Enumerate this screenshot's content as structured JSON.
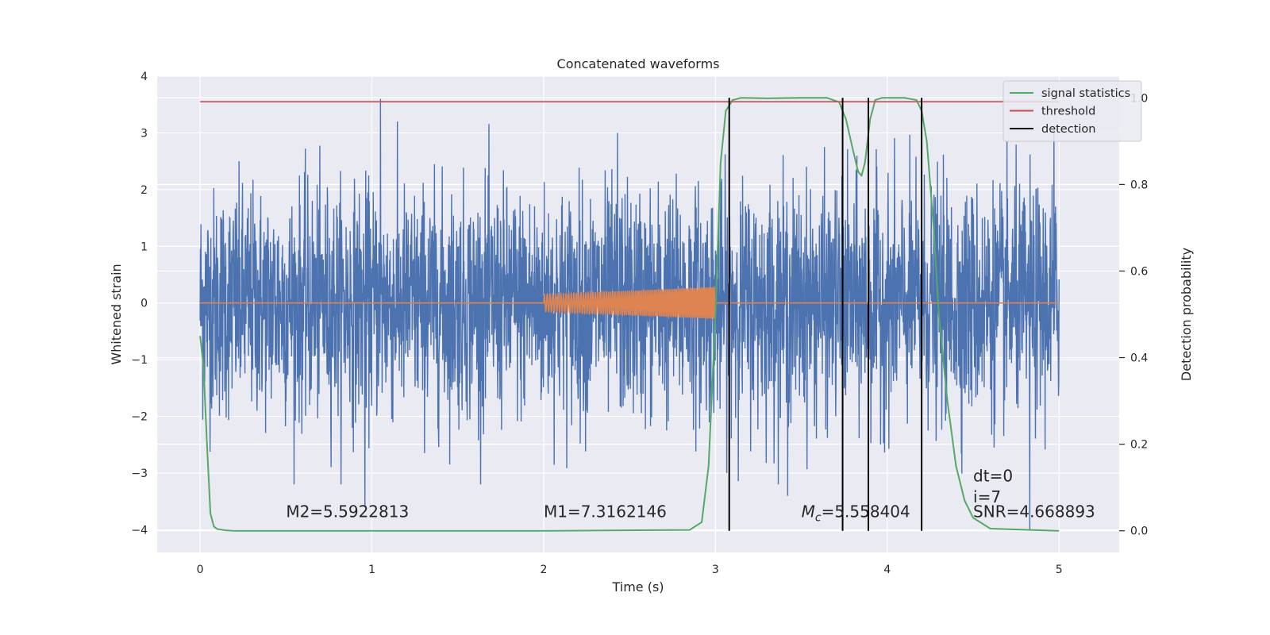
{
  "chart_data": {
    "type": "line",
    "title": "Concatenated waveforms",
    "xlabel": "Time (s)",
    "ylabel": "Whitened strain",
    "ylabel_right": "Detection probability",
    "xlim": [
      -0.25,
      5.35
    ],
    "ylim": [
      -4.4,
      4.0
    ],
    "ylim_right": [
      -0.05,
      1.05
    ],
    "x_ticks": [
      0,
      1,
      2,
      3,
      4,
      5
    ],
    "y_ticks": [
      -4,
      -3,
      -2,
      -1,
      0,
      1,
      2,
      3,
      4
    ],
    "y_ticks_right": [
      0.0,
      0.2,
      0.4,
      0.6,
      0.8,
      1.0
    ],
    "y_tick_labels_right": [
      "0.0",
      "0.2",
      "0.4",
      "0.6",
      "0.8",
      "1.0"
    ],
    "grid": true,
    "legend_position": "top-right",
    "series": [
      {
        "name": "",
        "axis": "left",
        "color": "#4c72b0",
        "style": "noise",
        "x_range": [
          0,
          5
        ],
        "typical_amplitude": 1.0,
        "peaks": [
          {
            "x": 0.96,
            "y": -3.6
          },
          {
            "x": 1.05,
            "y": 3.6
          },
          {
            "x": 2.43,
            "y": 3.0
          },
          {
            "x": 3.42,
            "y": -3.4
          },
          {
            "x": 3.74,
            "y": -3.1
          },
          {
            "x": 4.83,
            "y": -4.0
          },
          {
            "x": 4.97,
            "y": 3.1
          }
        ]
      },
      {
        "name": "",
        "axis": "left",
        "color": "#dd8452",
        "style": "chirp",
        "x_range": [
          0,
          5
        ],
        "chirp_x_range": [
          2.0,
          3.0
        ],
        "chirp_amplitude": [
          0.15,
          0.28
        ]
      },
      {
        "name": "signal statistics",
        "axis": "right",
        "color": "#55a868",
        "x": [
          0,
          0.02,
          0.04,
          0.06,
          0.08,
          0.1,
          0.15,
          0.2,
          1.0,
          2.0,
          2.85,
          2.92,
          2.96,
          3.0,
          3.03,
          3.06,
          3.1,
          3.15,
          3.3,
          3.5,
          3.65,
          3.72,
          3.76,
          3.8,
          3.83,
          3.85,
          3.87,
          3.9,
          3.93,
          3.97,
          4.0,
          4.1,
          4.17,
          4.2,
          4.23,
          4.27,
          4.3,
          4.35,
          4.4,
          4.45,
          4.5,
          4.6,
          5.0
        ],
        "y": [
          0.45,
          0.38,
          0.2,
          0.04,
          0.01,
          0.004,
          0.001,
          0.0,
          0.0,
          0.0,
          0.002,
          0.02,
          0.15,
          0.5,
          0.85,
          0.97,
          0.995,
          1.0,
          0.999,
          1.0,
          1.0,
          0.99,
          0.95,
          0.88,
          0.83,
          0.82,
          0.85,
          0.95,
          0.995,
          1.0,
          1.0,
          1.0,
          0.995,
          0.97,
          0.9,
          0.7,
          0.5,
          0.3,
          0.15,
          0.07,
          0.03,
          0.005,
          0.0
        ]
      },
      {
        "name": "threshold",
        "axis": "right",
        "color": "#c44e52",
        "x": [
          0,
          5
        ],
        "y": [
          0.991,
          0.991
        ]
      },
      {
        "name": "detection",
        "axis": "right",
        "color": "#000000",
        "type": "vlines",
        "x": [
          3.08,
          3.74,
          3.89,
          4.2
        ],
        "ymin": 0.0,
        "ymax": 1.0
      }
    ],
    "annotations": [
      {
        "text": "M2=5.5922813",
        "x": 0.5,
        "y": -3.78
      },
      {
        "text": "M1=7.3162146",
        "x": 2.0,
        "y": -3.78
      },
      {
        "text_prefix": "M",
        "text_sub": "c",
        "text_suffix": "=5.558404",
        "x": 3.5,
        "y": -3.78
      },
      {
        "text": "dt=0",
        "x": 4.5,
        "y": -3.15
      },
      {
        "text": "i=7",
        "x": 4.5,
        "y": -3.52
      },
      {
        "text": "SNR=4.668893",
        "x": 4.5,
        "y": -3.78
      }
    ]
  }
}
